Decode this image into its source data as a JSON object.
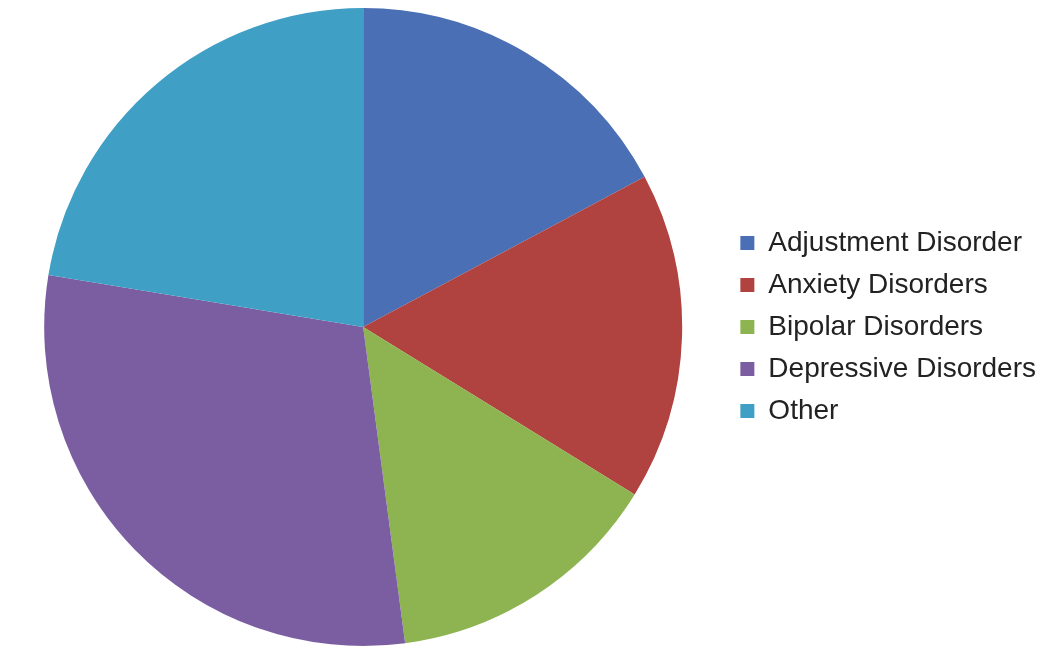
{
  "chart_data": {
    "type": "pie",
    "categories": [
      "Adjustment Disorder",
      "Anxiety Disorders",
      "Bipolar Disorders",
      "Depressive Disorders",
      "Other"
    ],
    "values": [
      17.2,
      16.6,
      14.1,
      29.7,
      22.4
    ],
    "colors": [
      "#4a6fb5",
      "#b0423f",
      "#8db450",
      "#7b5ea1",
      "#3f9fc4"
    ],
    "legend": "right"
  }
}
